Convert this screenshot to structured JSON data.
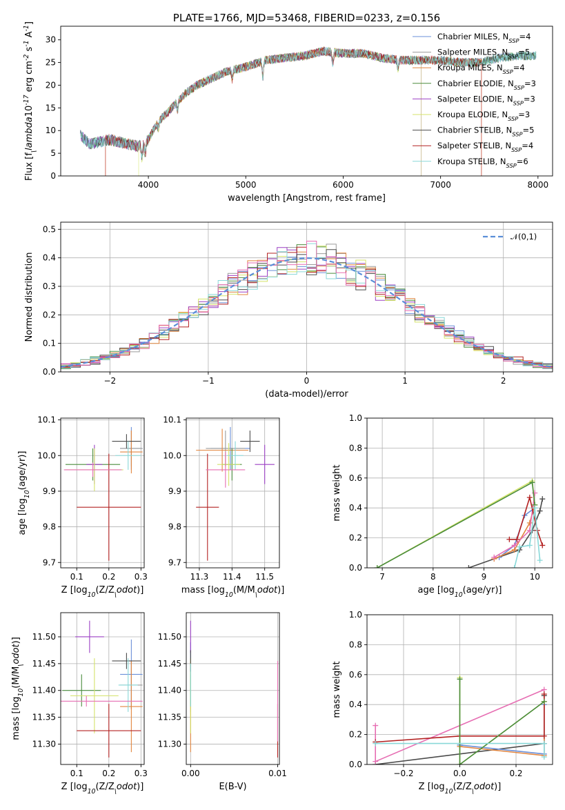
{
  "chart_data": [
    {
      "id": "spectrum",
      "type": "line",
      "title": "PLATE=1766, MJD=53468, FIBERID=0233, z=0.156",
      "xlabel": "wavelength [Angstrom, rest frame]",
      "ylabel": "Flux [f$_\\lambda$10$^{-17}$ erg cm$^{-2}$ s$^{-1}$ A$^{-1}$]",
      "xlim": [
        3100,
        8150
      ],
      "ylim": [
        0,
        33
      ],
      "xticks": [
        4000,
        5000,
        6000,
        7000,
        8000
      ],
      "yticks": [
        0,
        5,
        10,
        15,
        20,
        25,
        30
      ],
      "grid": false,
      "legend_position": "top-right",
      "continuum": {
        "x": [
          3300,
          3400,
          3500,
          3600,
          3700,
          3800,
          3900,
          4000,
          4100,
          4200,
          4300,
          4400,
          4500,
          4600,
          4800,
          5000,
          5200,
          5400,
          5600,
          5800,
          6000,
          6200,
          6400,
          6600,
          6800,
          7000,
          7200,
          7400,
          7600,
          7800,
          8000
        ],
        "y": [
          9,
          7,
          7.5,
          8,
          7.5,
          7,
          6.5,
          8,
          12,
          14,
          16.5,
          18.5,
          20,
          21,
          23,
          24,
          25.5,
          26,
          26.5,
          27.5,
          27,
          27,
          26,
          25.5,
          25.5,
          25.5,
          25,
          25,
          26,
          26.5,
          26.5
        ]
      },
      "series": [
        {
          "name": "Chabrier MILES, N$_{SSP}$=4",
          "color": "#6a8fd8"
        },
        {
          "name": "Salpeter MILES, N$_{SSP}$=5",
          "color": "#9a9a9a"
        },
        {
          "name": "Kroupa MILES, N$_{SSP}$=4",
          "color": "#e2853e"
        },
        {
          "name": "Chabrier ELODIE, N$_{SSP}$=3",
          "color": "#4a8c3c"
        },
        {
          "name": "Salpeter ELODIE, N$_{SSP}$=3",
          "color": "#9b3fc4"
        },
        {
          "name": "Kroupa ELODIE, N$_{SSP}$=3",
          "color": "#d4e36a"
        },
        {
          "name": "Chabrier STELIB, N$_{SSP}$=5",
          "color": "#4a4a4a"
        },
        {
          "name": "Salpeter STELIB, N$_{SSP}$=4",
          "color": "#b32020"
        },
        {
          "name": "Kroupa STELIB, N$_{SSP}$=6",
          "color": "#88d8d8"
        }
      ]
    },
    {
      "id": "residuals",
      "type": "line",
      "xlabel": "(data-model)/error",
      "ylabel": "Normed distribution",
      "xlim": [
        -2.5,
        2.5
      ],
      "ylim": [
        0,
        0.525
      ],
      "xticks": [
        -2,
        -1,
        0,
        1,
        2
      ],
      "yticks": [
        0.0,
        0.1,
        0.2,
        0.3,
        0.4,
        0.5
      ],
      "grid": true,
      "legend_position": "top-right",
      "normal_curve": {
        "name": "$\\mathcal{N}(0,1)$",
        "color": "#5a8ed8"
      },
      "histogram_bins": [
        -2.45,
        -2.35,
        -2.25,
        -2.15,
        -2.05,
        -1.95,
        -1.85,
        -1.75,
        -1.65,
        -1.55,
        -1.45,
        -1.35,
        -1.25,
        -1.15,
        -1.05,
        -0.95,
        -0.85,
        -0.75,
        -0.65,
        -0.55,
        -0.45,
        -0.35,
        -0.25,
        -0.15,
        -0.05,
        0.05,
        0.15,
        0.25,
        0.35,
        0.45,
        0.55,
        0.65,
        0.75,
        0.85,
        0.95,
        1.05,
        1.15,
        1.25,
        1.35,
        1.45,
        1.55,
        1.65,
        1.75,
        1.85,
        1.95,
        2.05,
        2.15,
        2.25,
        2.35,
        2.45
      ]
    },
    {
      "id": "age-vs-Z",
      "type": "scatter",
      "xlabel": "Z [log$_{10}$(Z/Z$_\\odot$)]",
      "ylabel": "age  [log$_{10}$(age/yr)]",
      "xlim": [
        0.05,
        0.31
      ],
      "ylim": [
        9.685,
        10.105
      ],
      "xticks": [
        0.1,
        0.2,
        0.3
      ],
      "yticks": [
        9.7,
        9.8,
        9.9,
        10.0,
        10.1
      ],
      "grid": true,
      "points": [
        {
          "x": 0.27,
          "y": 10.02,
          "xerr": 0.035,
          "yerr": 0.06,
          "color": "#6a8fd8"
        },
        {
          "x": 0.27,
          "y": 10.02,
          "xerr": 0.035,
          "yerr": 0.05,
          "color": "#9a9a9a"
        },
        {
          "x": 0.27,
          "y": 10.01,
          "xerr": 0.035,
          "yerr": 0.06,
          "color": "#e2853e"
        },
        {
          "x": 0.15,
          "y": 9.975,
          "xerr": 0.085,
          "yerr": 0.045,
          "color": "#4a8c3c"
        },
        {
          "x": 0.155,
          "y": 9.975,
          "xerr": 0.025,
          "yerr": 0.055,
          "color": "#9b3fc4"
        },
        {
          "x": 0.155,
          "y": 9.96,
          "xerr": 0.09,
          "yerr": 0.06,
          "color": "#d4e36a"
        },
        {
          "x": 0.255,
          "y": 10.04,
          "xerr": 0.045,
          "yerr": 0.02,
          "color": "#4a4a4a"
        },
        {
          "x": 0.2,
          "y": 9.855,
          "xerr": 0.1,
          "yerr": 0.15,
          "color": "#b32020"
        },
        {
          "x": 0.26,
          "y": 10.0,
          "xerr": 0.04,
          "yerr": 0.04,
          "color": "#88d8d8"
        },
        {
          "x": 0.15,
          "y": 9.96,
          "xerr": 0.09,
          "yerr": 0.02,
          "color": "#e66db2"
        }
      ]
    },
    {
      "id": "age-vs-mass",
      "type": "scatter",
      "xlabel": "mass [log$_{10}$(M/M$_\\odot$)]",
      "ylabel": "",
      "xlim": [
        11.26,
        11.545
      ],
      "ylim": [
        9.685,
        10.105
      ],
      "xticks": [
        11.3,
        11.4,
        11.5
      ],
      "yticks": [
        9.7,
        9.8,
        9.9,
        10.0,
        10.1
      ],
      "grid": true,
      "points": [
        {
          "x": 11.395,
          "y": 10.02,
          "xerr": 0.06,
          "yerr": 0.06,
          "color": "#6a8fd8"
        },
        {
          "x": 11.38,
          "y": 10.02,
          "xerr": 0.06,
          "yerr": 0.05,
          "color": "#9a9a9a"
        },
        {
          "x": 11.37,
          "y": 10.015,
          "xerr": 0.08,
          "yerr": 0.06,
          "color": "#e2853e"
        },
        {
          "x": 11.4,
          "y": 9.975,
          "xerr": 0.03,
          "yerr": 0.045,
          "color": "#4a8c3c"
        },
        {
          "x": 11.5,
          "y": 9.975,
          "xerr": 0.03,
          "yerr": 0.055,
          "color": "#9b3fc4"
        },
        {
          "x": 11.39,
          "y": 9.975,
          "xerr": 0.035,
          "yerr": 0.06,
          "color": "#d4e36a"
        },
        {
          "x": 11.455,
          "y": 10.04,
          "xerr": 0.03,
          "yerr": 0.03,
          "color": "#4a4a4a"
        },
        {
          "x": 11.325,
          "y": 9.855,
          "xerr": 0.035,
          "yerr": 0.15,
          "color": "#b32020"
        },
        {
          "x": 11.41,
          "y": 10.0,
          "xerr": 0.025,
          "yerr": 0.04,
          "color": "#88d8d8"
        },
        {
          "x": 11.38,
          "y": 9.96,
          "xerr": 0.06,
          "yerr": 0.05,
          "color": "#e66db2"
        }
      ]
    },
    {
      "id": "massweight-vs-age",
      "type": "line",
      "xlabel": "age  [log$_{10}$(age/yr)]",
      "ylabel": "mass weight",
      "xlim": [
        6.7,
        10.35
      ],
      "ylim": [
        0,
        1.0
      ],
      "xticks": [
        7,
        8,
        9,
        10
      ],
      "yticks": [
        0.0,
        0.2,
        0.4,
        0.6,
        0.8,
        1.0
      ],
      "grid": true,
      "series": [
        {
          "color": "#4a4a4a",
          "x": [
            8.7,
            9.7,
            9.95,
            10.1,
            10.15
          ],
          "y": [
            0.0,
            0.12,
            0.25,
            0.38,
            0.46
          ]
        },
        {
          "color": "#6a8fd8",
          "x": [
            9.3,
            9.6,
            9.8,
            10.0
          ],
          "y": [
            0.07,
            0.15,
            0.35,
            0.4
          ]
        },
        {
          "color": "#e2853e",
          "x": [
            9.2,
            9.6,
            9.9,
            10.0
          ],
          "y": [
            0.06,
            0.12,
            0.3,
            0.42
          ]
        },
        {
          "color": "#e66db2",
          "x": [
            9.2,
            9.6,
            9.9,
            10.0
          ],
          "y": [
            0.07,
            0.15,
            0.25,
            0.5
          ]
        },
        {
          "color": "#b32020",
          "x": [
            9.5,
            9.65,
            9.9,
            10.05,
            10.15
          ],
          "y": [
            0.19,
            0.19,
            0.47,
            0.25,
            0.15
          ]
        },
        {
          "color": "#d4e36a",
          "x": [
            6.9,
            9.95,
            10.0
          ],
          "y": [
            0.0,
            0.58,
            0.42
          ]
        },
        {
          "color": "#4a8c3c",
          "x": [
            6.9,
            9.95,
            10.0
          ],
          "y": [
            0.0,
            0.57,
            0.42
          ]
        },
        {
          "color": "#88d8d8",
          "x": [
            9.6,
            9.7,
            9.9,
            10.0,
            10.1
          ],
          "y": [
            0.0,
            0.14,
            0.15,
            0.4,
            0.05
          ]
        }
      ]
    },
    {
      "id": "mass-vs-Z",
      "type": "scatter",
      "xlabel": "Z [log$_{10}$(Z/Z$_\\odot$)]",
      "ylabel": "mass [log$_{10}$(M/M$_\\odot$)]",
      "xlim": [
        0.05,
        0.31
      ],
      "ylim": [
        11.262,
        11.545
      ],
      "xticks": [
        0.1,
        0.2,
        0.3
      ],
      "yticks": [
        11.3,
        11.35,
        11.4,
        11.45,
        11.5
      ],
      "grid": true,
      "points": [
        {
          "x": 0.27,
          "y": 11.43,
          "xerr": 0.035,
          "yerr": 0.065,
          "color": "#6a8fd8"
        },
        {
          "x": 0.27,
          "y": 11.41,
          "xerr": 0.035,
          "yerr": 0.045,
          "color": "#9a9a9a"
        },
        {
          "x": 0.27,
          "y": 11.37,
          "xerr": 0.035,
          "yerr": 0.085,
          "color": "#e2853e"
        },
        {
          "x": 0.115,
          "y": 11.4,
          "xerr": 0.06,
          "yerr": 0.03,
          "color": "#4a8c3c"
        },
        {
          "x": 0.14,
          "y": 11.5,
          "xerr": 0.045,
          "yerr": 0.03,
          "color": "#9b3fc4"
        },
        {
          "x": 0.155,
          "y": 11.39,
          "xerr": 0.075,
          "yerr": 0.07,
          "color": "#d4e36a"
        },
        {
          "x": 0.255,
          "y": 11.455,
          "xerr": 0.045,
          "yerr": 0.015,
          "color": "#4a4a4a"
        },
        {
          "x": 0.2,
          "y": 11.325,
          "xerr": 0.1,
          "yerr": 0.05,
          "color": "#b32020"
        },
        {
          "x": 0.26,
          "y": 11.41,
          "xerr": 0.03,
          "yerr": 0.05,
          "color": "#88d8d8"
        },
        {
          "x": 0.13,
          "y": 11.38,
          "xerr": 0.175,
          "yerr": 0.01,
          "color": "#e66db2"
        }
      ]
    },
    {
      "id": "mass-vs-EBV",
      "type": "scatter",
      "xlabel": "E(B-V)",
      "ylabel": "",
      "xlim": [
        -0.0005,
        0.0102
      ],
      "ylim": [
        11.262,
        11.545
      ],
      "xticks": [
        0.0,
        0.01
      ],
      "yticks": [
        11.3,
        11.35,
        11.4,
        11.45,
        11.5
      ],
      "grid": true,
      "points": [
        {
          "x": 0.0,
          "y": 11.43,
          "yerr": 0.06,
          "color": "#6a8fd8"
        },
        {
          "x": 0.0,
          "y": 11.41,
          "yerr": 0.05,
          "color": "#9a9a9a"
        },
        {
          "x": 0.0,
          "y": 11.37,
          "yerr": 0.085,
          "color": "#e2853e"
        },
        {
          "x": 0.0,
          "y": 11.4,
          "yerr": 0.03,
          "color": "#4a8c3c"
        },
        {
          "x": 0.0,
          "y": 11.5,
          "yerr": 0.03,
          "color": "#9b3fc4"
        },
        {
          "x": 0.0,
          "y": 11.39,
          "yerr": 0.07,
          "color": "#d4e36a"
        },
        {
          "x": 0.0,
          "y": 11.455,
          "yerr": 0.02,
          "color": "#4a4a4a"
        },
        {
          "x": 0.01,
          "y": 11.325,
          "yerr": 0.05,
          "color": "#b32020"
        },
        {
          "x": 0.0,
          "y": 11.41,
          "yerr": 0.04,
          "color": "#88d8d8"
        },
        {
          "x": 0.01,
          "y": 11.38,
          "yerr": 0.075,
          "color": "#e66db2"
        }
      ]
    },
    {
      "id": "massweight-vs-Z",
      "type": "line",
      "xlabel": "Z [log$_{10}$(Z/Z$_\\odot$)]",
      "ylabel": "mass weight",
      "xlim": [
        -0.33,
        0.33
      ],
      "ylim": [
        0,
        1.0
      ],
      "xticks": [
        -0.2,
        0.0,
        0.2
      ],
      "yticks": [
        0.0,
        0.2,
        0.4,
        0.6,
        0.8,
        1.0
      ],
      "grid": true,
      "series": [
        {
          "color": "#4a4a4a",
          "x": [
            -0.3,
            0.3,
            0.3
          ],
          "y": [
            0.0,
            0.14,
            0.46
          ]
        },
        {
          "color": "#6a8fd8",
          "x": [
            0.0,
            0.3,
            0.3
          ],
          "y": [
            0.13,
            0.07,
            0.4
          ]
        },
        {
          "color": "#e2853e",
          "x": [
            0.0,
            0.3,
            0.3
          ],
          "y": [
            0.12,
            0.06,
            0.42
          ]
        },
        {
          "color": "#e66db2",
          "x": [
            -0.3,
            -0.3,
            0.3
          ],
          "y": [
            0.26,
            0.02,
            0.5
          ]
        },
        {
          "color": "#b32020",
          "x": [
            -0.3,
            0.0,
            0.3,
            0.3
          ],
          "y": [
            0.15,
            0.19,
            0.19,
            0.47
          ]
        },
        {
          "color": "#d4e36a",
          "x": [
            0.0,
            0.0,
            0.3
          ],
          "y": [
            0.58,
            0.0,
            0.42
          ]
        },
        {
          "color": "#4a8c3c",
          "x": [
            0.0,
            0.0,
            0.3
          ],
          "y": [
            0.57,
            0.0,
            0.42
          ]
        },
        {
          "color": "#88d8d8",
          "x": [
            -0.3,
            0.3,
            0.3
          ],
          "y": [
            0.14,
            0.14,
            0.05
          ]
        }
      ]
    }
  ]
}
